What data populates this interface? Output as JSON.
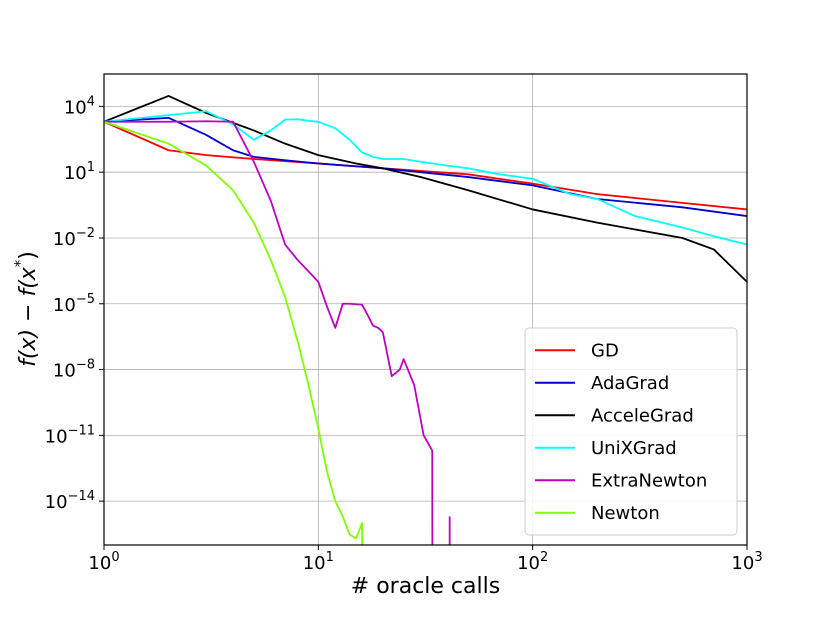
{
  "chart_data": {
    "type": "line",
    "title": "",
    "xlabel": "# oracle calls",
    "ylabel_parts": [
      "f(x)",
      " − ",
      "f(x",
      "*",
      ")"
    ],
    "x_scale": "log",
    "y_scale": "log",
    "xlim": [
      1,
      1000
    ],
    "ylim": [
      1e-16,
      300000.0
    ],
    "x_ticks": [
      {
        "base": "10",
        "exp": "0",
        "value": 1
      },
      {
        "base": "10",
        "exp": "1",
        "value": 10
      },
      {
        "base": "10",
        "exp": "2",
        "value": 100
      },
      {
        "base": "10",
        "exp": "3",
        "value": 1000
      }
    ],
    "y_ticks": [
      {
        "base": "10",
        "exp": "4",
        "value": 10000.0
      },
      {
        "base": "10",
        "exp": "1",
        "value": 10.0
      },
      {
        "base": "10",
        "exp": "−2",
        "value": 0.01
      },
      {
        "base": "10",
        "exp": "−5",
        "value": 1e-05
      },
      {
        "base": "10",
        "exp": "−8",
        "value": 1e-08
      },
      {
        "base": "10",
        "exp": "−11",
        "value": 1e-11
      },
      {
        "base": "10",
        "exp": "−14",
        "value": 1e-14
      }
    ],
    "grid": true,
    "legend_position": "lower-right",
    "series": [
      {
        "name": "GD",
        "color": "#ff0000",
        "x": [
          1,
          2,
          3,
          5,
          10,
          20,
          50,
          100,
          200,
          500,
          1000
        ],
        "y": [
          2000,
          100,
          60,
          40,
          25,
          15,
          8,
          3,
          1,
          0.4,
          0.2
        ]
      },
      {
        "name": "AdaGrad",
        "color": "#0000cc",
        "x": [
          1,
          2,
          3,
          4,
          5,
          7,
          10,
          20,
          50,
          100,
          200,
          500,
          1000
        ],
        "y": [
          2000,
          3000,
          500,
          100,
          50,
          35,
          25,
          15,
          6,
          2.5,
          0.6,
          0.25,
          0.1
        ]
      },
      {
        "name": "AcceleGrad",
        "color": "#000000",
        "x": [
          1,
          2,
          3,
          5,
          7,
          10,
          15,
          20,
          30,
          50,
          100,
          200,
          500,
          700,
          1000
        ],
        "y": [
          2000,
          30000,
          5000,
          800,
          200,
          60,
          25,
          15,
          6,
          1.5,
          0.2,
          0.05,
          0.01,
          0.003,
          0.0001
        ]
      },
      {
        "name": "UniXGrad",
        "color": "#00ffff",
        "x": [
          1,
          2,
          3,
          4,
          5,
          6,
          7,
          8,
          9,
          10,
          12,
          14,
          16,
          18,
          20,
          25,
          30,
          40,
          50,
          70,
          100,
          150,
          200,
          300,
          500,
          700,
          1000
        ],
        "y": [
          2000,
          4000,
          6000,
          1500,
          300,
          800,
          2500,
          2600,
          2200,
          2000,
          1000,
          300,
          80,
          50,
          40,
          40,
          30,
          20,
          15,
          8,
          5,
          1,
          0.6,
          0.1,
          0.03,
          0.012,
          0.005
        ]
      },
      {
        "name": "ExtraNewton",
        "color": "#bf00bf",
        "x": [
          1,
          2,
          3,
          4,
          5,
          6,
          7,
          8,
          9,
          10,
          11,
          12,
          13,
          14,
          15,
          16,
          17,
          18,
          19,
          20,
          22,
          24,
          25,
          28,
          31,
          34,
          34.05
        ],
        "y": [
          2000,
          2000,
          2100,
          2000,
          30,
          0.5,
          0.005,
          0.001,
          0.0003,
          0.0001,
          7e-06,
          8e-07,
          1e-05,
          1e-05,
          9.5e-06,
          9e-06,
          3e-06,
          1e-06,
          8e-07,
          5e-07,
          5e-09,
          1e-08,
          3e-08,
          2e-09,
          1e-11,
          2e-12,
          1e-18
        ]
      },
      {
        "name": "Newton",
        "color": "#80ff00",
        "x": [
          1,
          2,
          3,
          4,
          5,
          6,
          7,
          8,
          9,
          10,
          11,
          12,
          13,
          14,
          15,
          16,
          16.02
        ],
        "y": [
          2000,
          200,
          20,
          1.5,
          0.05,
          0.001,
          2e-05,
          2e-07,
          2e-09,
          2e-11,
          2e-13,
          1e-14,
          2e-15,
          3e-16,
          2e-16,
          1e-15,
          1e-18
        ]
      }
    ],
    "extra_segments": [
      {
        "series": "ExtraNewton",
        "x": [
          41,
          41
        ],
        "y": [
          2e-15,
          1e-18
        ]
      }
    ]
  }
}
